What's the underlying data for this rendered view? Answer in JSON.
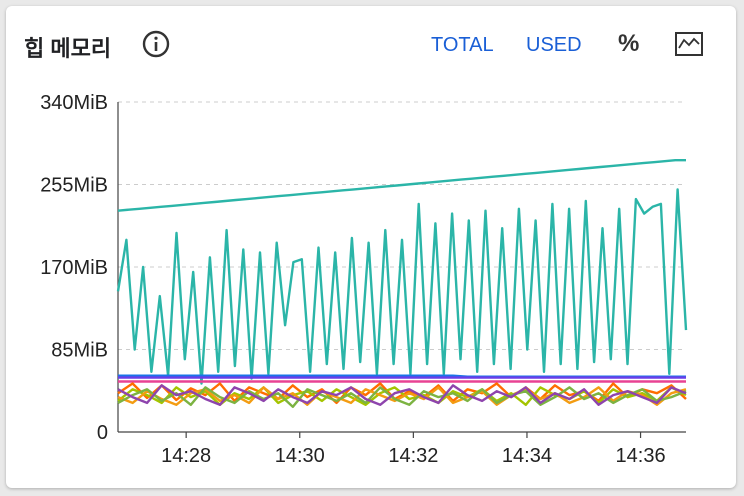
{
  "header": {
    "title": "힙 메모리",
    "info_icon": "info-icon",
    "total_label": "TOTAL",
    "used_label": "USED",
    "percent_label": "%",
    "chart_icon": "line-chart-icon"
  },
  "colors": {
    "accent": "#1a5fd6",
    "series": [
      "#2bb5a8",
      "#2bb5a8",
      "#1a73e8",
      "#6a3de8",
      "#e84393",
      "#ff6d00",
      "#a4c400",
      "#f39c12",
      "#7cb342",
      "#8e44ad"
    ]
  },
  "chart_data": {
    "type": "line",
    "x_start_minutes": 866.8,
    "x_end_minutes": 876.8,
    "xticks": [
      "14:28",
      "14:30",
      "14:32",
      "14:34",
      "14:36"
    ],
    "yticks": [
      "0",
      "85MiB",
      "170MiB",
      "255MiB",
      "340MiB"
    ],
    "ylim": [
      0,
      340
    ],
    "grid": true,
    "series": [
      {
        "values": [
          228,
          229,
          230,
          231,
          232,
          233,
          234,
          235,
          236,
          237,
          238,
          239,
          240,
          241,
          242,
          243,
          244,
          245,
          246,
          247,
          248,
          249,
          250,
          251,
          252,
          253,
          254,
          255,
          256,
          257,
          258,
          259,
          260,
          261,
          262,
          263,
          264,
          265,
          266,
          267,
          268,
          269,
          270,
          271,
          272,
          273,
          274,
          275,
          276,
          277,
          278,
          279,
          280,
          280
        ]
      },
      {
        "values": [
          145,
          198,
          85,
          170,
          62,
          140,
          58,
          205,
          75,
          165,
          50,
          180,
          62,
          208,
          68,
          188,
          55,
          185,
          60,
          195,
          110,
          175,
          178,
          62,
          190,
          70,
          185,
          65,
          200,
          72,
          195,
          60,
          208,
          70,
          198,
          60,
          235,
          70,
          215,
          60,
          225,
          75,
          218,
          62,
          228,
          70,
          210,
          65,
          230,
          85,
          218,
          62,
          235,
          70,
          230,
          65,
          238,
          72,
          210,
          75,
          230,
          70,
          240,
          225,
          232,
          235,
          60,
          250,
          105
        ]
      },
      {
        "values": [
          58,
          58,
          58,
          58,
          58,
          58,
          58,
          58,
          58,
          58,
          58,
          58,
          58,
          58,
          58,
          58,
          58,
          58,
          58,
          58,
          58,
          58,
          58,
          58,
          57,
          57,
          57,
          57,
          57,
          57,
          57,
          57,
          57,
          57,
          57,
          57,
          57,
          57,
          57,
          57
        ]
      },
      {
        "values": [
          56,
          56,
          56,
          56,
          56,
          56,
          56,
          56,
          56,
          56,
          56,
          56,
          56,
          56,
          56,
          56,
          56,
          56,
          56,
          56,
          56,
          56,
          56,
          56,
          56,
          56,
          56,
          56,
          56,
          56,
          56,
          56,
          56,
          56,
          56,
          56,
          56,
          56,
          56,
          56
        ]
      },
      {
        "values": [
          52,
          52,
          52,
          52,
          52,
          52,
          52,
          52,
          52,
          52,
          52,
          52,
          52,
          52,
          52,
          52,
          52,
          52,
          52,
          52,
          52,
          52,
          52,
          52,
          52,
          52,
          52,
          52,
          52,
          52,
          52,
          52,
          52,
          52,
          52,
          52,
          52,
          52,
          52,
          52
        ]
      },
      {
        "values": [
          40,
          50,
          35,
          48,
          33,
          45,
          38,
          50,
          32,
          46,
          40,
          34,
          48,
          36,
          44,
          30,
          46,
          38,
          50,
          34,
          42,
          36,
          48,
          32,
          44,
          40,
          50,
          36,
          46,
          34,
          48,
          38,
          42,
          32,
          50,
          36,
          44,
          40,
          48,
          34
        ]
      },
      {
        "values": [
          32,
          44,
          38,
          30,
          46,
          36,
          42,
          28,
          40,
          34,
          46,
          30,
          38,
          42,
          32,
          44,
          36,
          28,
          40,
          46,
          34,
          38,
          30,
          42,
          36,
          44,
          32,
          40,
          28,
          46,
          38,
          34,
          42,
          30,
          44,
          36,
          40,
          32,
          46,
          38
        ]
      },
      {
        "values": [
          36,
          30,
          42,
          34,
          28,
          40,
          44,
          32,
          38,
          30,
          46,
          34,
          40,
          28,
          42,
          36,
          30,
          44,
          38,
          32,
          40,
          34,
          46,
          30,
          36,
          42,
          28,
          38,
          44,
          34,
          40,
          30,
          36,
          46,
          32,
          42,
          38,
          28,
          40,
          44
        ]
      },
      {
        "values": [
          30,
          38,
          44,
          32,
          40,
          28,
          46,
          36,
          30,
          42,
          34,
          40,
          26,
          44,
          38,
          32,
          40,
          30,
          46,
          34,
          28,
          42,
          36,
          40,
          32,
          44,
          30,
          38,
          42,
          28,
          36,
          46,
          34,
          40,
          30,
          38,
          44,
          32,
          36,
          42
        ]
      },
      {
        "values": [
          44,
          36,
          30,
          48,
          38,
          42,
          34,
          28,
          46,
          40,
          32,
          44,
          36,
          30,
          42,
          38,
          46,
          34,
          28,
          40,
          44,
          36,
          30,
          48,
          38,
          32,
          42,
          36,
          46,
          30,
          40,
          34,
          44,
          28,
          38,
          42,
          36,
          30,
          46,
          40
        ]
      }
    ]
  }
}
